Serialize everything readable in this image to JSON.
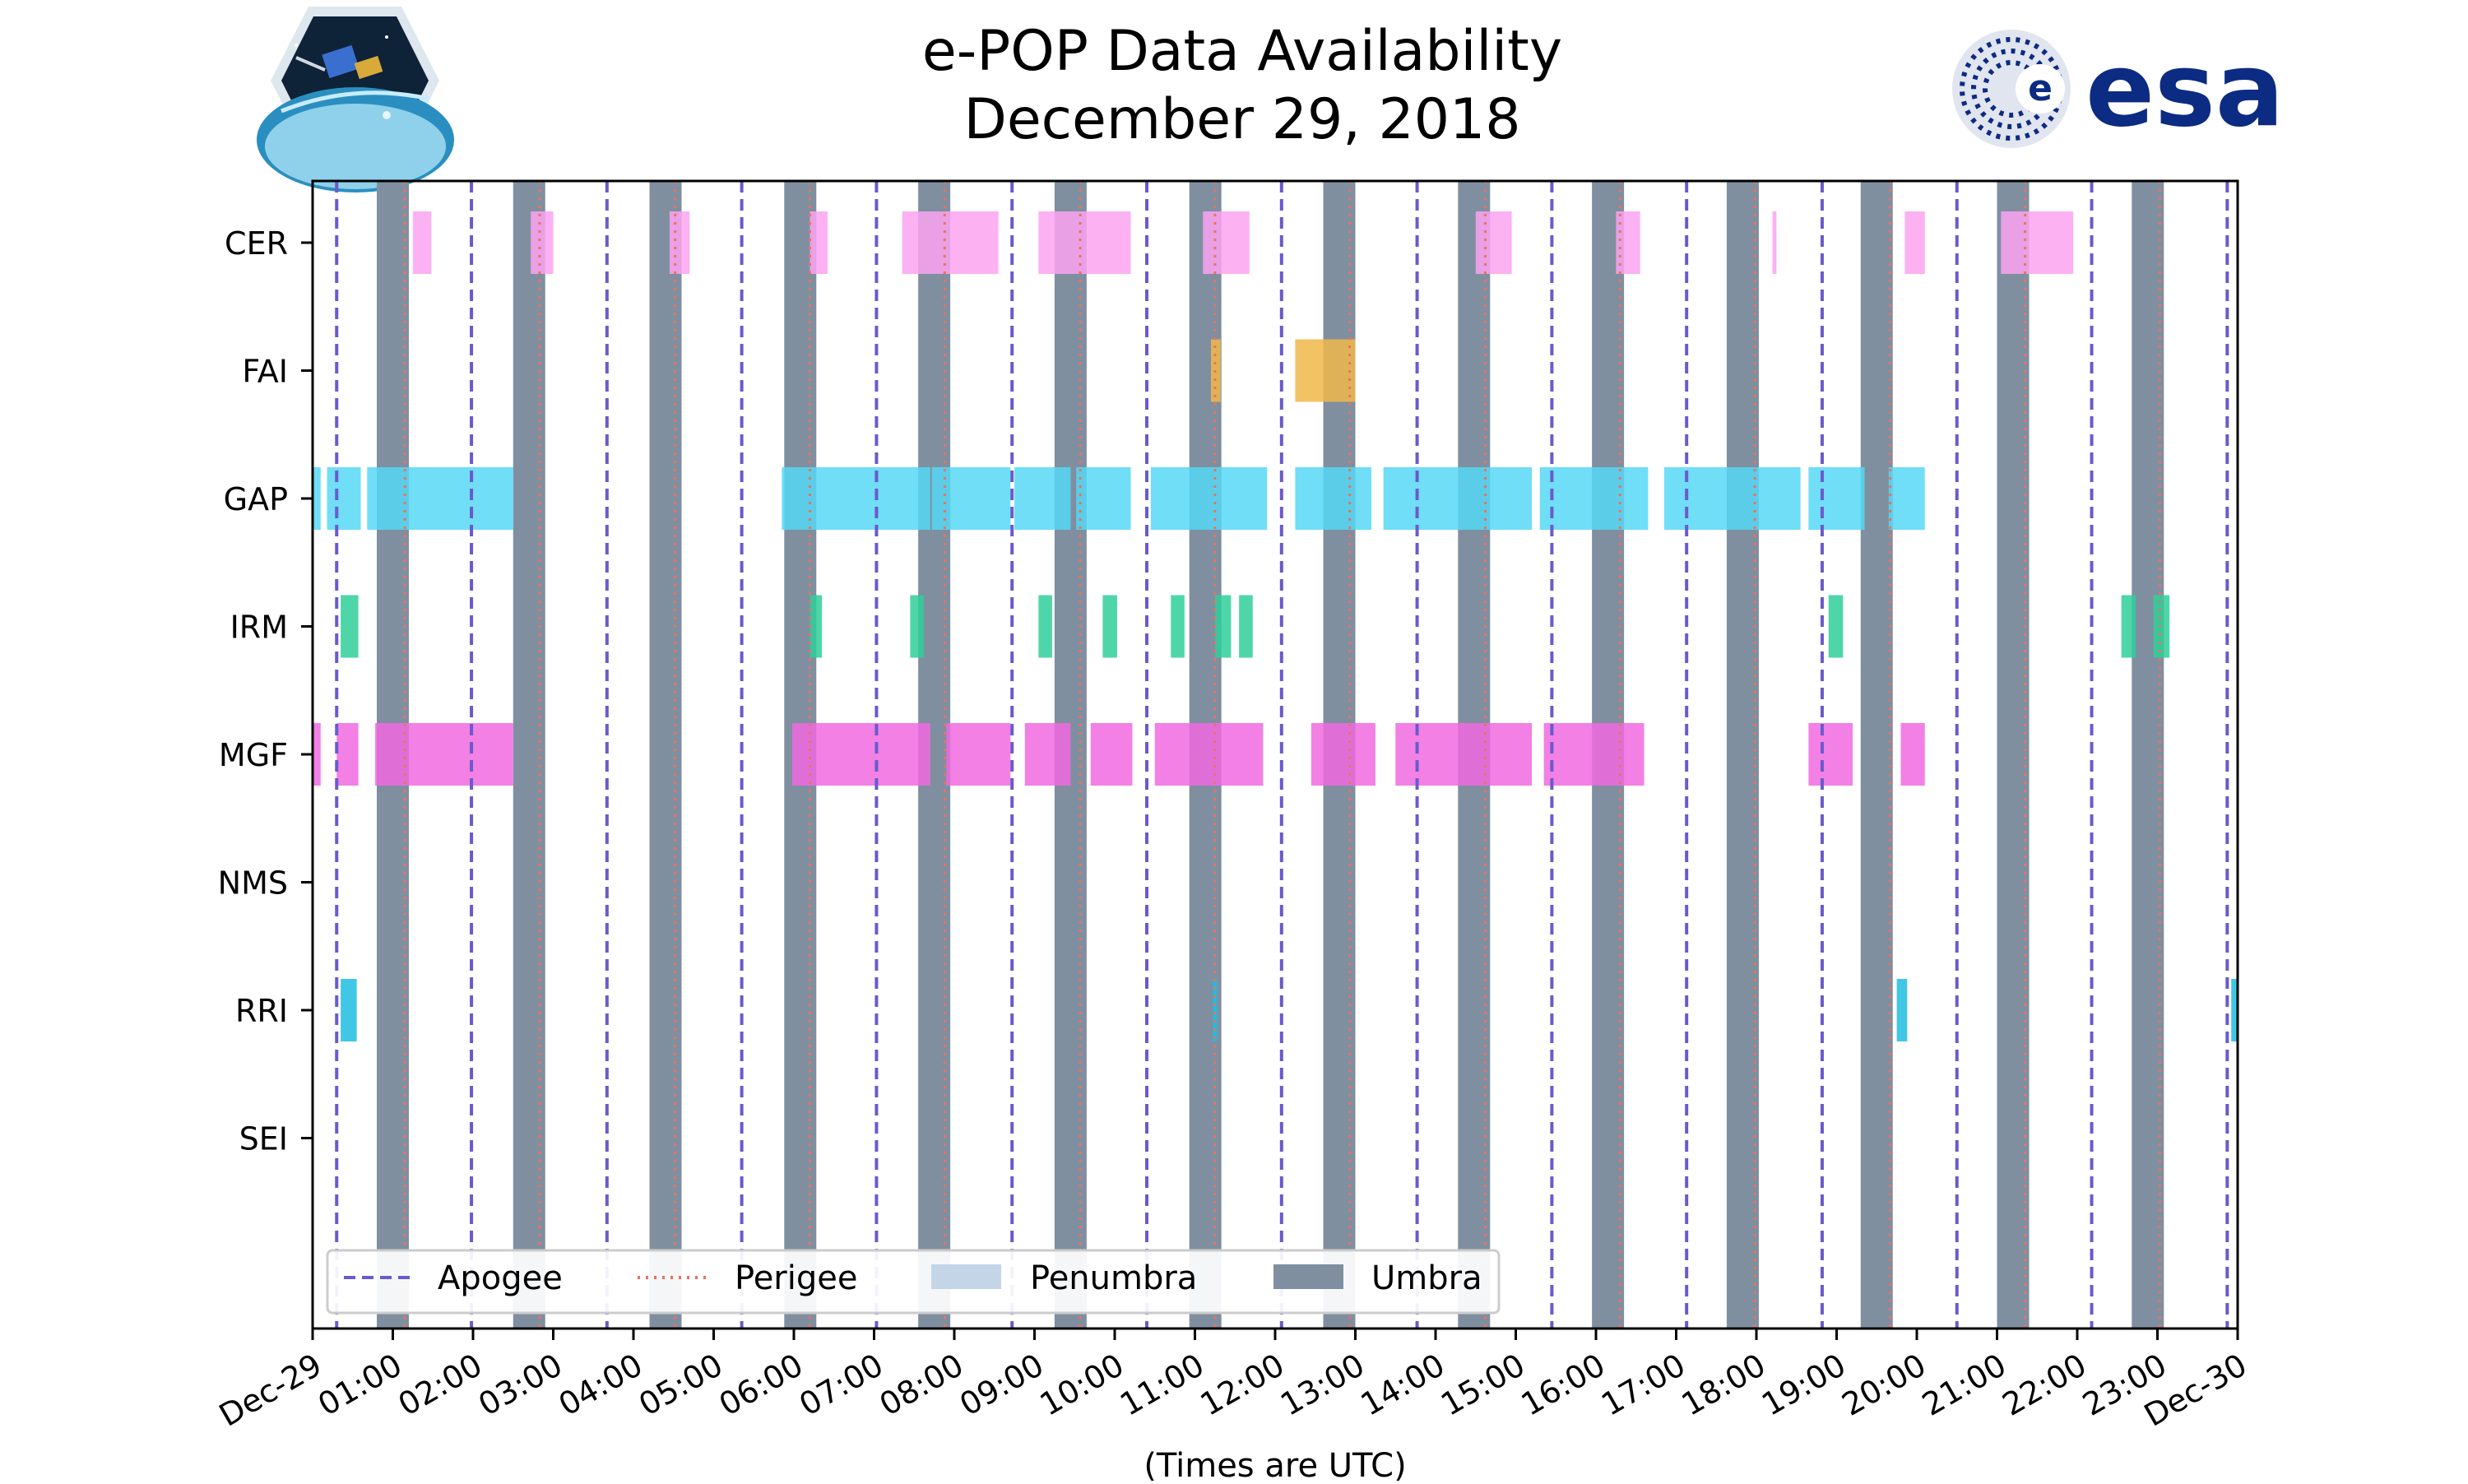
{
  "chart_data": {
    "type": "timeline",
    "title_line1": "e-POP Data Availability",
    "title_line2": "December 29, 2018",
    "xlabel": "(Times are UTC)",
    "x_range_hours": [
      0,
      24
    ],
    "x_tick_labels": [
      "Dec-29",
      "01:00",
      "02:00",
      "03:00",
      "04:00",
      "05:00",
      "06:00",
      "07:00",
      "08:00",
      "09:00",
      "10:00",
      "11:00",
      "12:00",
      "13:00",
      "14:00",
      "15:00",
      "16:00",
      "17:00",
      "18:00",
      "19:00",
      "20:00",
      "21:00",
      "22:00",
      "23:00",
      "Dec-30"
    ],
    "instruments": [
      "CER",
      "FAI",
      "GAP",
      "IRM",
      "MGF",
      "NMS",
      "RRI",
      "SEI"
    ],
    "colors": {
      "CER": "#fba3f0",
      "FAI": "#f0b84a",
      "GAP": "#56d8f5",
      "IRM": "#2fcf9a",
      "MGF": "#f06ae0",
      "NMS": "#999999",
      "RRI": "#1fbde0",
      "SEI": "#999999",
      "apogee": "#6a5acd",
      "perigee": "#ee7060",
      "penumbra": "#c5d5e8",
      "umbra": "#7f8fa0"
    },
    "legend": {
      "apogee": "Apogee",
      "perigee": "Perigee",
      "penumbra": "Penumbra",
      "umbra": "Umbra",
      "location": "lower-center"
    },
    "apogee_hours": [
      0.3,
      1.98,
      3.67,
      5.35,
      7.03,
      8.72,
      10.4,
      12.08,
      13.77,
      15.45,
      17.13,
      18.82,
      20.5,
      22.18,
      23.87
    ],
    "perigee_hours": [
      1.15,
      2.83,
      4.52,
      6.2,
      7.88,
      9.57,
      11.25,
      12.93,
      14.62,
      16.3,
      17.98,
      19.67,
      21.35,
      23.03
    ],
    "umbra_intervals": [
      [
        0.8,
        1.2
      ],
      [
        2.5,
        2.9
      ],
      [
        4.2,
        4.6
      ],
      [
        5.88,
        6.28
      ],
      [
        7.55,
        7.95
      ],
      [
        9.25,
        9.65
      ],
      [
        10.93,
        11.33
      ],
      [
        12.6,
        13.0
      ],
      [
        14.28,
        14.68
      ],
      [
        15.95,
        16.35
      ],
      [
        17.63,
        18.03
      ],
      [
        19.3,
        19.7
      ],
      [
        21.0,
        21.4
      ],
      [
        22.68,
        23.08
      ]
    ],
    "series": [
      {
        "name": "CER",
        "intervals": [
          [
            1.25,
            1.48
          ],
          [
            2.72,
            3.0
          ],
          [
            4.45,
            4.7
          ],
          [
            6.2,
            6.42
          ],
          [
            7.35,
            8.55
          ],
          [
            9.05,
            10.2
          ],
          [
            11.1,
            11.68
          ],
          [
            14.5,
            14.95
          ],
          [
            16.25,
            16.55
          ],
          [
            18.2,
            18.25
          ],
          [
            19.85,
            20.1
          ],
          [
            21.05,
            21.95
          ]
        ]
      },
      {
        "name": "FAI",
        "intervals": [
          [
            11.2,
            11.32
          ],
          [
            12.25,
            13.0
          ]
        ]
      },
      {
        "name": "GAP",
        "intervals": [
          [
            0.0,
            0.1
          ],
          [
            0.18,
            0.6
          ],
          [
            0.68,
            2.5
          ],
          [
            5.85,
            7.7
          ],
          [
            7.72,
            8.7
          ],
          [
            8.75,
            9.45
          ],
          [
            9.52,
            10.2
          ],
          [
            10.45,
            11.9
          ],
          [
            12.25,
            13.2
          ],
          [
            13.35,
            15.2
          ],
          [
            15.3,
            16.65
          ],
          [
            16.85,
            18.55
          ],
          [
            18.65,
            19.35
          ],
          [
            19.65,
            20.1
          ]
        ]
      },
      {
        "name": "IRM",
        "intervals": [
          [
            0.35,
            0.57
          ],
          [
            6.2,
            6.35
          ],
          [
            7.45,
            7.62
          ],
          [
            9.05,
            9.22
          ],
          [
            9.85,
            10.03
          ],
          [
            10.7,
            10.87
          ],
          [
            11.25,
            11.45
          ],
          [
            11.55,
            11.72
          ],
          [
            18.9,
            19.08
          ],
          [
            22.55,
            22.73
          ],
          [
            22.95,
            23.15
          ]
        ]
      },
      {
        "name": "MGF",
        "intervals": [
          [
            0.0,
            0.1
          ],
          [
            0.3,
            0.57
          ],
          [
            0.78,
            2.5
          ],
          [
            5.98,
            7.7
          ],
          [
            7.9,
            8.7
          ],
          [
            8.88,
            9.45
          ],
          [
            9.7,
            10.22
          ],
          [
            10.5,
            11.85
          ],
          [
            12.45,
            13.25
          ],
          [
            13.5,
            15.2
          ],
          [
            15.35,
            16.6
          ],
          [
            18.65,
            19.2
          ],
          [
            19.8,
            20.1
          ]
        ]
      },
      {
        "name": "NMS",
        "intervals": []
      },
      {
        "name": "RRI",
        "intervals": [
          [
            0.35,
            0.55
          ],
          [
            11.22,
            11.28
          ],
          [
            19.75,
            19.88
          ],
          [
            23.92,
            24.0
          ]
        ]
      },
      {
        "name": "SEI",
        "intervals": []
      }
    ]
  }
}
